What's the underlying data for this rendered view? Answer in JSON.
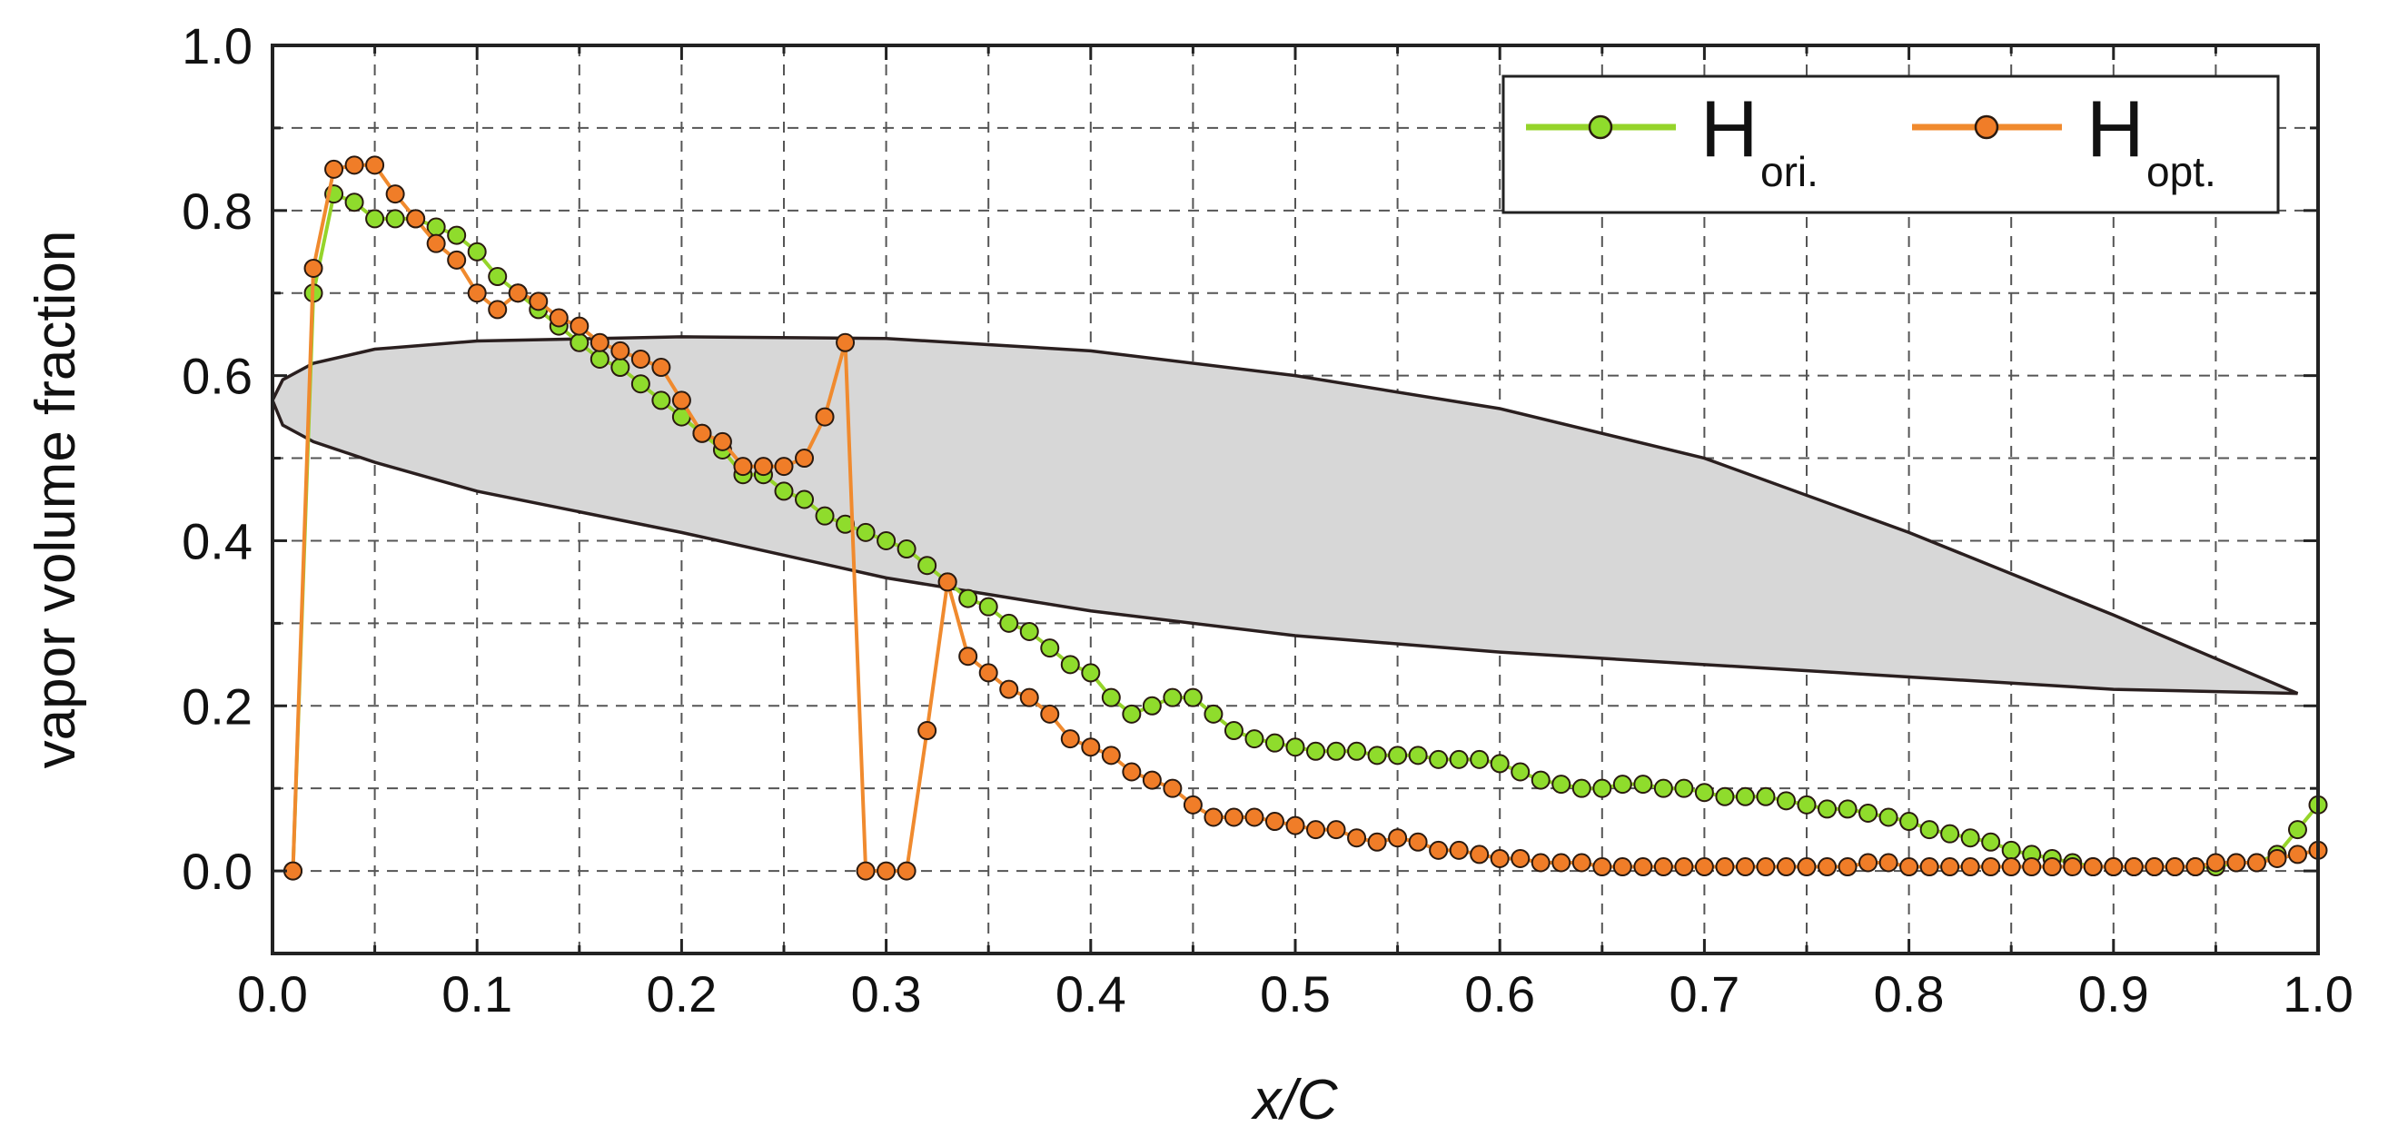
{
  "chart_data": {
    "type": "line",
    "xlabel": "x/C",
    "ylabel": "vapor volume fraction",
    "xlim": [
      0.0,
      1.0
    ],
    "ylim": [
      -0.1,
      1.0
    ],
    "xticks": [
      "0.0",
      "0.1",
      "0.2",
      "0.3",
      "0.4",
      "0.5",
      "0.6",
      "0.7",
      "0.8",
      "0.9",
      "1.0"
    ],
    "yticks": [
      "0.0",
      "0.2",
      "0.4",
      "0.6",
      "0.8",
      "1.0"
    ],
    "grid": true,
    "legend_position": "top-right",
    "series": [
      {
        "name": "H",
        "subscript": "ori.",
        "line_color": "#95d42a",
        "marker_fill": "#8fdc2c",
        "x": [
          0.01,
          0.02,
          0.03,
          0.04,
          0.05,
          0.06,
          0.07,
          0.08,
          0.09,
          0.1,
          0.11,
          0.12,
          0.13,
          0.14,
          0.15,
          0.16,
          0.17,
          0.18,
          0.19,
          0.2,
          0.21,
          0.22,
          0.23,
          0.24,
          0.25,
          0.26,
          0.27,
          0.28,
          0.29,
          0.3,
          0.31,
          0.32,
          0.33,
          0.34,
          0.35,
          0.36,
          0.37,
          0.38,
          0.39,
          0.4,
          0.41,
          0.42,
          0.43,
          0.44,
          0.45,
          0.46,
          0.47,
          0.48,
          0.49,
          0.5,
          0.51,
          0.52,
          0.53,
          0.54,
          0.55,
          0.56,
          0.57,
          0.58,
          0.59,
          0.6,
          0.61,
          0.62,
          0.63,
          0.64,
          0.65,
          0.66,
          0.67,
          0.68,
          0.69,
          0.7,
          0.71,
          0.72,
          0.73,
          0.74,
          0.75,
          0.76,
          0.77,
          0.78,
          0.79,
          0.8,
          0.81,
          0.82,
          0.83,
          0.84,
          0.85,
          0.86,
          0.87,
          0.88,
          0.89,
          0.9,
          0.91,
          0.92,
          0.93,
          0.94,
          0.95,
          0.96,
          0.97,
          0.98,
          0.99,
          1.0
        ],
        "y": [
          0.0,
          0.7,
          0.82,
          0.81,
          0.79,
          0.79,
          0.79,
          0.78,
          0.77,
          0.75,
          0.72,
          0.7,
          0.68,
          0.66,
          0.64,
          0.62,
          0.61,
          0.59,
          0.57,
          0.55,
          0.53,
          0.51,
          0.48,
          0.48,
          0.46,
          0.45,
          0.43,
          0.42,
          0.41,
          0.4,
          0.39,
          0.37,
          0.35,
          0.33,
          0.32,
          0.3,
          0.29,
          0.27,
          0.25,
          0.24,
          0.21,
          0.19,
          0.2,
          0.21,
          0.21,
          0.19,
          0.17,
          0.16,
          0.155,
          0.15,
          0.145,
          0.145,
          0.145,
          0.14,
          0.14,
          0.14,
          0.135,
          0.135,
          0.135,
          0.13,
          0.12,
          0.11,
          0.105,
          0.1,
          0.1,
          0.105,
          0.105,
          0.1,
          0.1,
          0.095,
          0.09,
          0.09,
          0.09,
          0.085,
          0.08,
          0.075,
          0.075,
          0.07,
          0.065,
          0.06,
          0.05,
          0.045,
          0.04,
          0.035,
          0.025,
          0.02,
          0.015,
          0.01,
          0.005,
          0.005,
          0.005,
          0.005,
          0.005,
          0.005,
          0.005,
          0.01,
          0.01,
          0.02,
          0.05,
          0.08
        ]
      },
      {
        "name": "H",
        "subscript": "opt.",
        "line_color": "#f08a2e",
        "marker_fill": "#f07d28",
        "x": [
          0.01,
          0.02,
          0.03,
          0.04,
          0.05,
          0.06,
          0.07,
          0.08,
          0.09,
          0.1,
          0.11,
          0.12,
          0.13,
          0.14,
          0.15,
          0.16,
          0.17,
          0.18,
          0.19,
          0.2,
          0.21,
          0.22,
          0.23,
          0.24,
          0.25,
          0.26,
          0.27,
          0.28,
          0.29,
          0.3,
          0.31,
          0.32,
          0.33,
          0.34,
          0.35,
          0.36,
          0.37,
          0.38,
          0.39,
          0.4,
          0.41,
          0.42,
          0.43,
          0.44,
          0.45,
          0.46,
          0.47,
          0.48,
          0.49,
          0.5,
          0.51,
          0.52,
          0.53,
          0.54,
          0.55,
          0.56,
          0.57,
          0.58,
          0.59,
          0.6,
          0.61,
          0.62,
          0.63,
          0.64,
          0.65,
          0.66,
          0.67,
          0.68,
          0.69,
          0.7,
          0.71,
          0.72,
          0.73,
          0.74,
          0.75,
          0.76,
          0.77,
          0.78,
          0.79,
          0.8,
          0.81,
          0.82,
          0.83,
          0.84,
          0.85,
          0.86,
          0.87,
          0.88,
          0.89,
          0.9,
          0.91,
          0.92,
          0.93,
          0.94,
          0.95,
          0.96,
          0.97,
          0.98,
          0.99,
          1.0
        ],
        "y": [
          0.0,
          0.73,
          0.85,
          0.855,
          0.855,
          0.82,
          0.79,
          0.76,
          0.74,
          0.7,
          0.68,
          0.7,
          0.69,
          0.67,
          0.66,
          0.64,
          0.63,
          0.62,
          0.61,
          0.57,
          0.53,
          0.52,
          0.49,
          0.49,
          0.49,
          0.5,
          0.55,
          0.64,
          0.0,
          0.0,
          0.0,
          0.17,
          0.35,
          0.26,
          0.24,
          0.22,
          0.21,
          0.19,
          0.16,
          0.15,
          0.14,
          0.12,
          0.11,
          0.1,
          0.08,
          0.065,
          0.065,
          0.065,
          0.06,
          0.055,
          0.05,
          0.05,
          0.04,
          0.035,
          0.04,
          0.035,
          0.025,
          0.025,
          0.02,
          0.015,
          0.015,
          0.01,
          0.01,
          0.01,
          0.005,
          0.005,
          0.005,
          0.005,
          0.005,
          0.005,
          0.005,
          0.005,
          0.005,
          0.005,
          0.005,
          0.005,
          0.005,
          0.01,
          0.01,
          0.005,
          0.005,
          0.005,
          0.005,
          0.005,
          0.005,
          0.005,
          0.005,
          0.005,
          0.005,
          0.005,
          0.005,
          0.005,
          0.005,
          0.005,
          0.01,
          0.01,
          0.01,
          0.015,
          0.02,
          0.025
        ]
      }
    ],
    "airfoil_overlay": {
      "fill": "#d7d7d7",
      "stroke": "#2a1f1f",
      "upper": [
        [
          0.0,
          0.57
        ],
        [
          0.005,
          0.595
        ],
        [
          0.02,
          0.615
        ],
        [
          0.05,
          0.632
        ],
        [
          0.1,
          0.642
        ],
        [
          0.2,
          0.647
        ],
        [
          0.3,
          0.645
        ],
        [
          0.4,
          0.63
        ],
        [
          0.5,
          0.6
        ],
        [
          0.6,
          0.56
        ],
        [
          0.7,
          0.5
        ],
        [
          0.8,
          0.41
        ],
        [
          0.9,
          0.31
        ],
        [
          0.99,
          0.215
        ]
      ],
      "lower": [
        [
          0.99,
          0.215
        ],
        [
          0.9,
          0.22
        ],
        [
          0.8,
          0.235
        ],
        [
          0.7,
          0.25
        ],
        [
          0.6,
          0.265
        ],
        [
          0.5,
          0.285
        ],
        [
          0.4,
          0.315
        ],
        [
          0.3,
          0.355
        ],
        [
          0.2,
          0.41
        ],
        [
          0.1,
          0.46
        ],
        [
          0.05,
          0.495
        ],
        [
          0.02,
          0.52
        ],
        [
          0.005,
          0.54
        ],
        [
          0.0,
          0.57
        ]
      ]
    }
  }
}
